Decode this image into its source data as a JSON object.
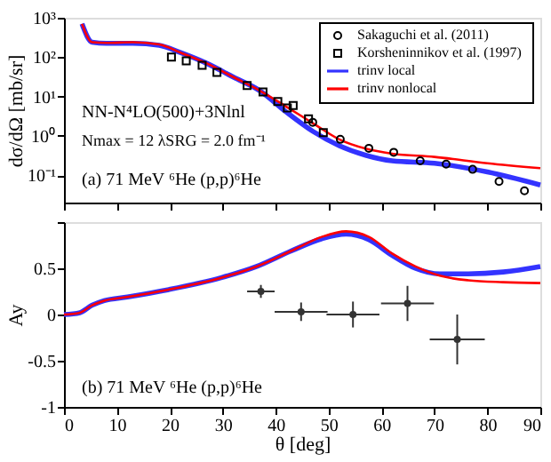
{
  "chart_data": [
    {
      "type": "scatter",
      "ylabel": "dσ/dΩ [mb/sr]",
      "log": "y",
      "xlim": [
        0,
        90
      ],
      "xticks": [
        0,
        10,
        20,
        30,
        40,
        50,
        60,
        70,
        80,
        90
      ],
      "ylim": [
        0.02,
        1000
      ],
      "yticks": [
        {
          "value": 1000,
          "label": "10³"
        },
        {
          "value": 100,
          "label": "10²"
        },
        {
          "value": 10,
          "label": "10¹"
        },
        {
          "value": 1,
          "label": "10⁰"
        },
        {
          "value": 0.1,
          "label": "10⁻¹"
        }
      ],
      "tick_labels": "y",
      "grid": false,
      "legend": "top right",
      "annotations": [
        "NN-N⁴LO(500)+3Nlnl",
        "Nmax = 12   λSRG = 2.0 fm⁻¹",
        "(a)    71 MeV     ⁶He (p,p)⁶He"
      ],
      "series": [
        {
          "name": "Sakaguchi et al. (2011)",
          "marker": "circle",
          "color": "#000000",
          "x": [
            47,
            52.2,
            57.6,
            62.3,
            67.3,
            72.2,
            77.2,
            82.2,
            87
          ],
          "values": [
            2.2,
            0.81,
            0.48,
            0.38,
            0.23,
            0.19,
            0.14,
            0.069,
            0.04
          ]
        },
        {
          "name": "Korsheninnikov et al. (1997)",
          "marker": "square",
          "color": "#000000",
          "x": [
            20.3,
            23.1,
            26.1,
            28.9,
            34.6,
            37.6,
            40.4,
            42.2,
            43.3,
            46.2,
            49
          ],
          "values": [
            100,
            80,
            62,
            41,
            19,
            13,
            7.4,
            5.1,
            5.9,
            2.7,
            1.2
          ]
        },
        {
          "name": "trinv local",
          "type": "line",
          "color": "#3333ff",
          "x": [
            3.4,
            5.3,
            8,
            13,
            18,
            22,
            27,
            32,
            37,
            42,
            47,
            52,
            57,
            62,
            70,
            80,
            90
          ],
          "values": [
            700,
            240,
            225,
            225,
            200,
            130,
            69,
            31,
            14,
            4,
            1.3,
            0.56,
            0.32,
            0.23,
            0.2,
            0.12,
            0.056
          ]
        },
        {
          "name": "trinv nonlocal",
          "type": "line",
          "color": "#ff0000",
          "x": [
            3.4,
            5.3,
            8,
            13,
            18,
            22,
            27,
            32,
            37,
            42,
            47,
            52,
            57,
            62,
            70,
            80,
            90
          ],
          "values": [
            700,
            240,
            230,
            240,
            210,
            130,
            69,
            31,
            14,
            5.5,
            2.1,
            0.81,
            0.47,
            0.35,
            0.29,
            0.2,
            0.15
          ]
        }
      ]
    },
    {
      "type": "scatter",
      "xlabel": "θ [deg]",
      "ylabel": "Ay",
      "xlim": [
        0,
        90
      ],
      "xticks": [
        0,
        10,
        20,
        30,
        40,
        50,
        60,
        70,
        80,
        90
      ],
      "ylim": [
        -1,
        1
      ],
      "yticks": [
        -1,
        -0.5,
        0,
        0.5,
        {
          "value": 1,
          "label": null
        }
      ],
      "grid": false,
      "annotations": [
        "(b)    71 MeV     ⁶He (p,p)⁶He"
      ],
      "series": [
        {
          "marker": "circle",
          "color": "#333333",
          "x": [
            37.2,
            44.8,
            54.6,
            64.9,
            74.3
          ],
          "values": [
            0.25,
            0.03,
            0,
            0.12,
            -0.27
          ],
          "errors": [
            0.07,
            0.1,
            0.14,
            0.19,
            0.27
          ],
          "xerrors": [
            2.6,
            5,
            5,
            5,
            5.2
          ]
        },
        {
          "type": "line",
          "color": "#3333ff",
          "x": [
            0,
            3,
            5.3,
            7.6,
            12,
            19.8,
            29.8,
            36.4,
            43,
            48.7,
            53.3,
            57.6,
            62,
            66.4,
            71,
            76.4,
            83,
            90
          ],
          "values": [
            0,
            0.02,
            0.1,
            0.15,
            0.19,
            0.27,
            0.4,
            0.52,
            0.69,
            0.82,
            0.87,
            0.81,
            0.64,
            0.5,
            0.44,
            0.44,
            0.46,
            0.52
          ]
        },
        {
          "type": "line",
          "color": "#ff0000",
          "x": [
            0,
            3,
            5.3,
            7.6,
            12,
            19.8,
            29.8,
            36.4,
            43,
            48.7,
            53.3,
            57.6,
            62,
            66.4,
            71,
            76.4,
            83,
            90
          ],
          "values": [
            0,
            0.02,
            0.1,
            0.15,
            0.19,
            0.27,
            0.4,
            0.52,
            0.69,
            0.84,
            0.9,
            0.84,
            0.66,
            0.52,
            0.42,
            0.37,
            0.35,
            0.34
          ]
        }
      ]
    }
  ]
}
